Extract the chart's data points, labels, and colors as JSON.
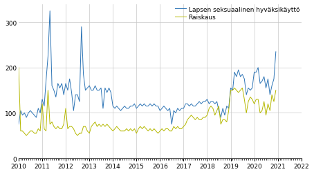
{
  "title": "",
  "legend_blue": "Lapsen seksuaalinen hyväksikäyttö",
  "legend_yellow": "Raiskaus",
  "ylim": [
    0,
    340
  ],
  "yticks": [
    0,
    100,
    200,
    300
  ],
  "start_year": 2010,
  "line_color_blue": "#2e75b6",
  "line_color_yellow": "#b5b800",
  "background_color": "#ffffff",
  "grid_color": "#c8c8c8",
  "blue": [
    75,
    105,
    95,
    100,
    90,
    100,
    105,
    100,
    95,
    90,
    110,
    100,
    130,
    115,
    170,
    225,
    325,
    160,
    150,
    135,
    165,
    155,
    165,
    140,
    165,
    150,
    175,
    145,
    105,
    140,
    140,
    125,
    290,
    185,
    150,
    155,
    160,
    150,
    150,
    160,
    150,
    150,
    155,
    110,
    155,
    145,
    155,
    145,
    115,
    110,
    115,
    110,
    105,
    110,
    115,
    110,
    110,
    115,
    115,
    120,
    110,
    115,
    120,
    115,
    120,
    115,
    115,
    120,
    115,
    120,
    115,
    115,
    105,
    110,
    115,
    110,
    105,
    110,
    75,
    105,
    100,
    110,
    105,
    110,
    110,
    120,
    120,
    115,
    120,
    115,
    115,
    120,
    125,
    120,
    125,
    125,
    130,
    120,
    125,
    125,
    120,
    125,
    105,
    90,
    110,
    95,
    115,
    110,
    155,
    150,
    190,
    180,
    195,
    180,
    185,
    175,
    140,
    155,
    150,
    155,
    190,
    190,
    200,
    165,
    170,
    180,
    155,
    175,
    140,
    160,
    175,
    235
  ],
  "yellow": [
    200,
    60,
    60,
    55,
    50,
    55,
    60,
    60,
    55,
    55,
    65,
    60,
    120,
    65,
    60,
    150,
    75,
    80,
    70,
    65,
    70,
    65,
    65,
    75,
    110,
    65,
    70,
    70,
    65,
    55,
    50,
    55,
    55,
    70,
    70,
    60,
    55,
    70,
    75,
    80,
    70,
    75,
    70,
    75,
    70,
    75,
    70,
    65,
    60,
    65,
    70,
    65,
    60,
    60,
    60,
    65,
    60,
    65,
    60,
    65,
    55,
    65,
    70,
    65,
    70,
    65,
    60,
    65,
    60,
    65,
    60,
    55,
    60,
    65,
    60,
    65,
    65,
    60,
    60,
    70,
    65,
    70,
    65,
    65,
    70,
    75,
    85,
    90,
    95,
    90,
    85,
    90,
    85,
    85,
    90,
    90,
    95,
    110,
    115,
    110,
    95,
    105,
    115,
    75,
    85,
    85,
    80,
    105,
    150,
    150,
    155,
    150,
    145,
    150,
    155,
    130,
    100,
    125,
    135,
    130,
    120,
    130,
    130,
    100,
    105,
    125,
    95,
    120,
    105,
    140,
    125,
    150
  ]
}
